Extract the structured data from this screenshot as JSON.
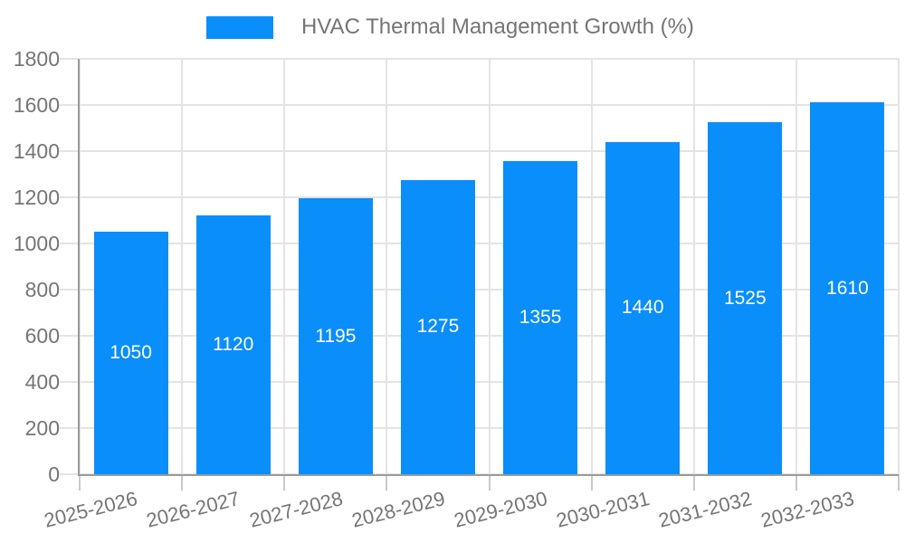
{
  "chart_data": {
    "type": "bar",
    "title": "HVAC Thermal Management Growth (%)",
    "categories": [
      "2025-2026",
      "2026-2027",
      "2027-2028",
      "2028-2029",
      "2029-2030",
      "2030-2031",
      "2031-2032",
      "2032-2033"
    ],
    "values": [
      1050,
      1120,
      1195,
      1275,
      1355,
      1440,
      1525,
      1610
    ],
    "xlabel": "",
    "ylabel": "",
    "ylim": [
      0,
      1800
    ],
    "ytick_step": 200,
    "ytick_labels": [
      "0",
      "200",
      "400",
      "600",
      "800",
      "1000",
      "1200",
      "1400",
      "1600",
      "1800"
    ],
    "grid": true,
    "legend_position": "top-center",
    "bar_label_position": "inside-center",
    "colors": {
      "bar": "#0a8efa",
      "bar_label": "#ffffff",
      "axis_text": "#757575",
      "legend_text": "#757575",
      "gridline": "#e4e4e4",
      "axis_line": "#9a9a9a",
      "tick": "#c9c9c9",
      "background": "#ffffff"
    }
  },
  "legend": {
    "items": [
      {
        "label": "HVAC Thermal Management Growth (%)",
        "color": "#0a8efa"
      }
    ]
  }
}
